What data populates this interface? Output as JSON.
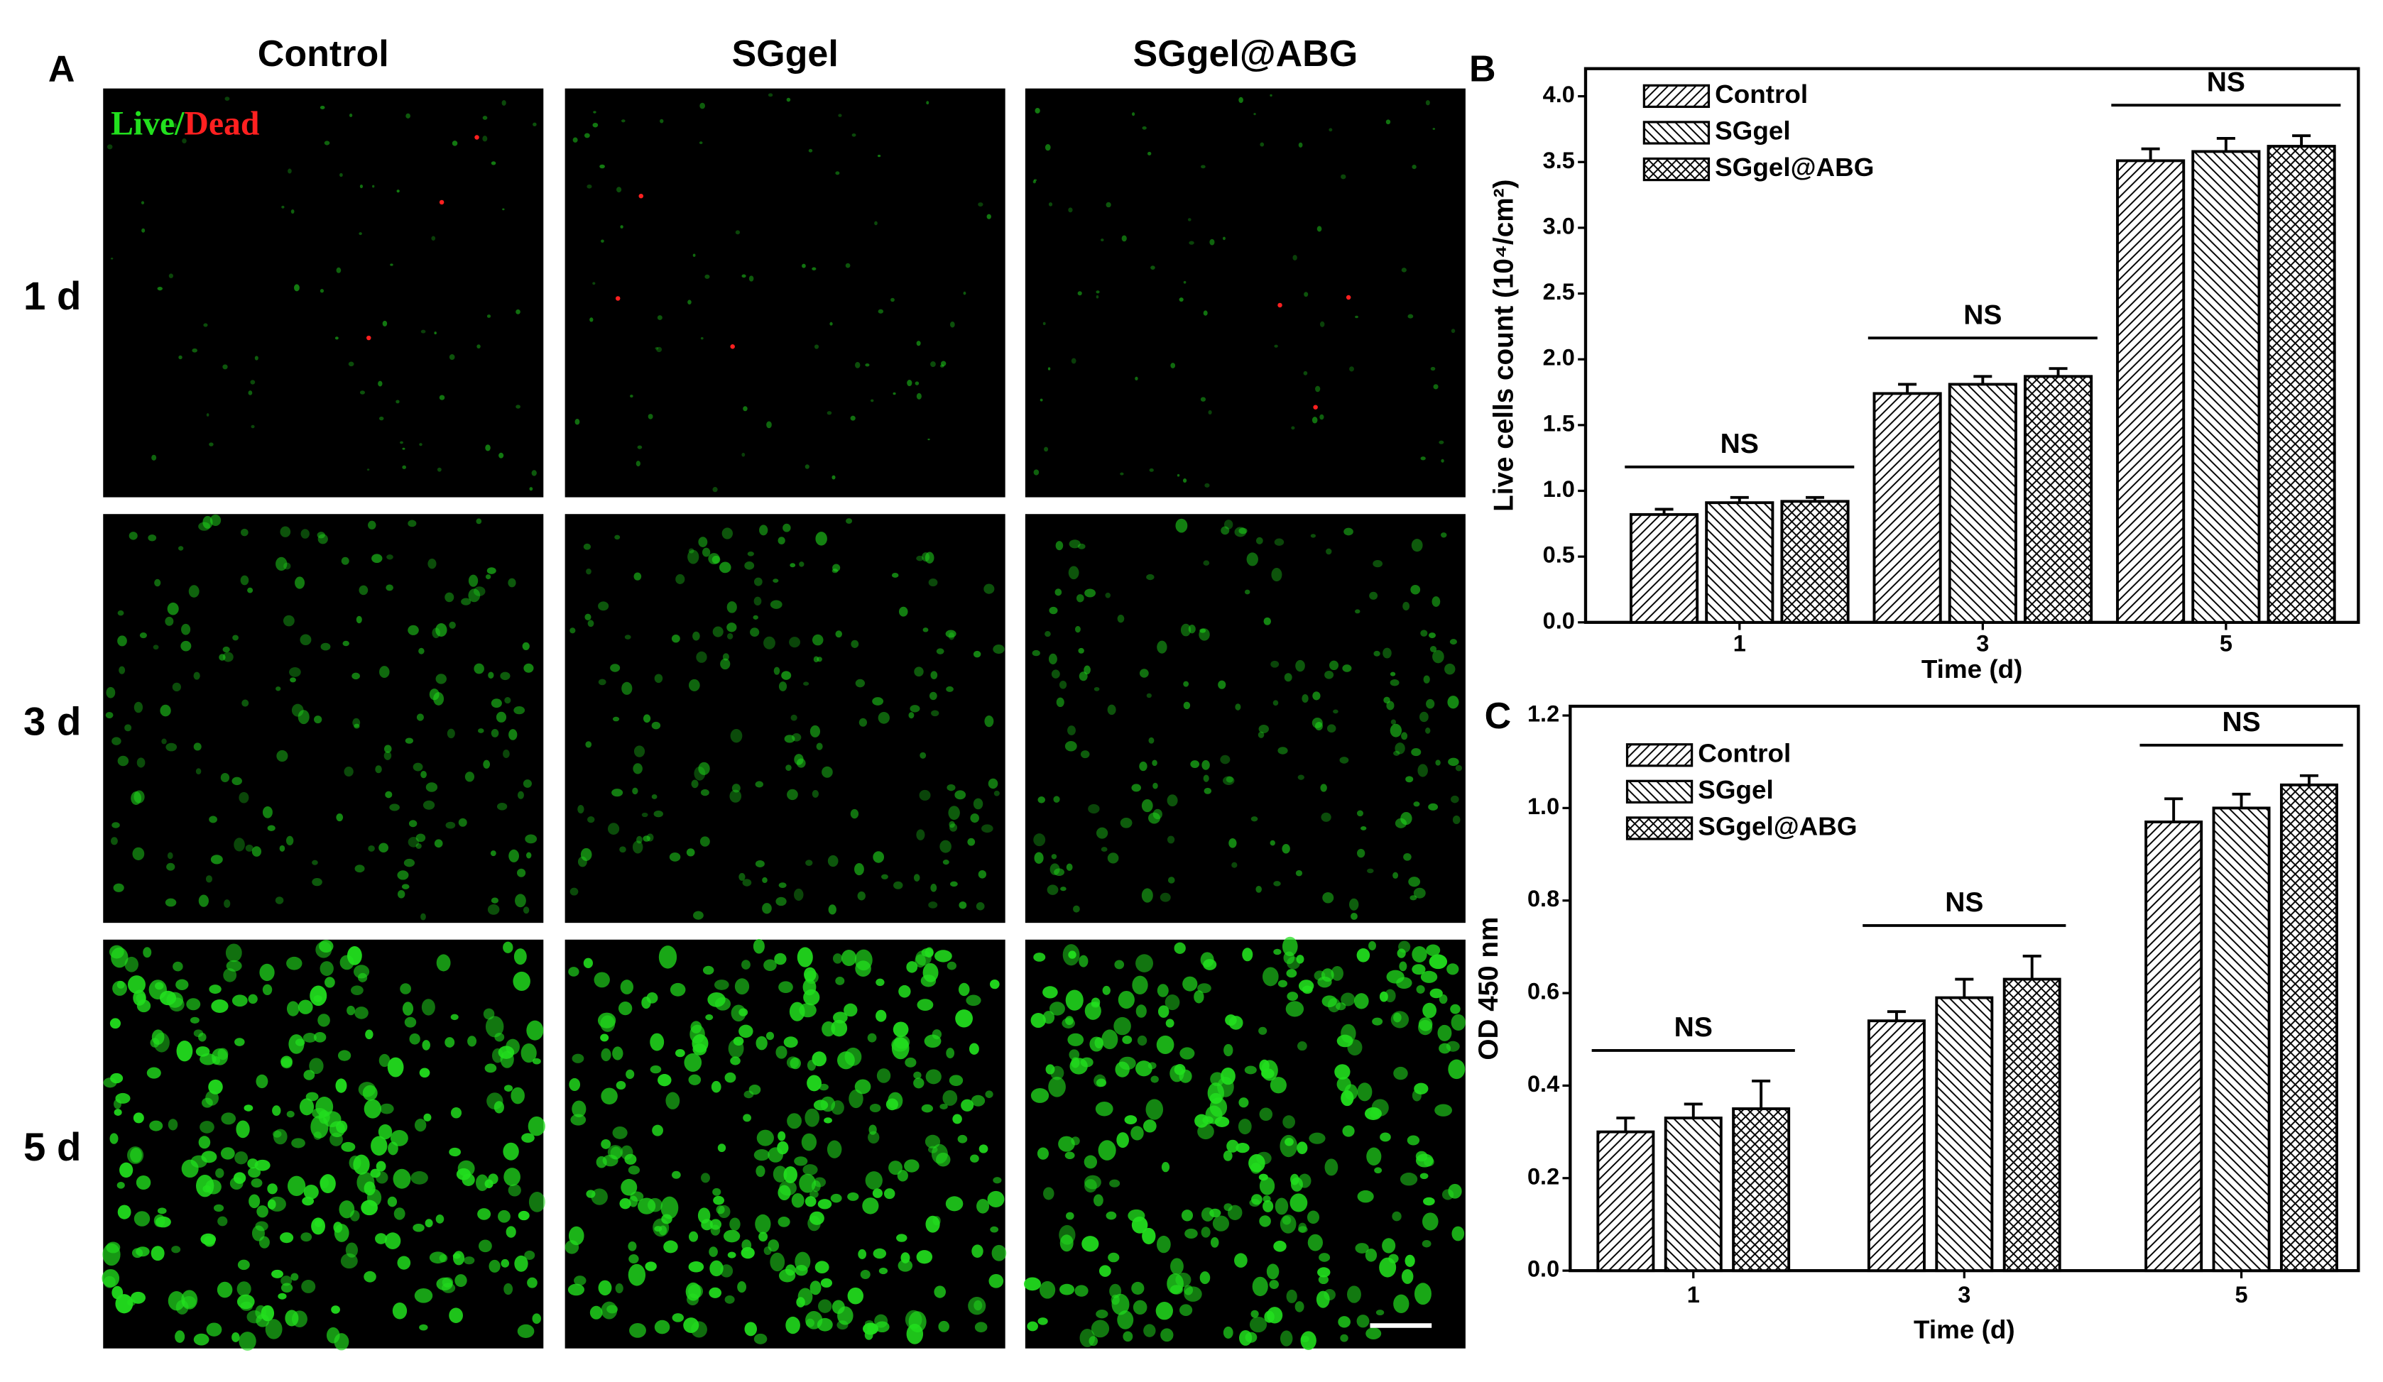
{
  "figure_a": {
    "panel": "A",
    "columns": [
      "Control",
      "SGgel",
      "SGgel@ABG"
    ],
    "rows": [
      "1 d",
      "3 d",
      "5 d"
    ],
    "stain": {
      "live": "Live",
      "separator": "/",
      "dead": "Dead",
      "live_color": "#22e01e",
      "dead_color": "#ff2020"
    }
  },
  "chart_data": [
    {
      "type": "bar",
      "panel": "B",
      "ylabel": "Live cells count (10⁴/cm²)",
      "xlabel": "Time (d)",
      "categories": [
        "1",
        "3",
        "5"
      ],
      "series": [
        {
          "name": "Control",
          "color": "#000000",
          "pattern": "diagonal-up",
          "values": [
            0.82,
            1.74,
            3.51
          ],
          "errors": [
            0.04,
            0.07,
            0.09
          ]
        },
        {
          "name": "SGgel",
          "color": "#000000",
          "pattern": "diagonal-down",
          "values": [
            0.91,
            1.81,
            3.58
          ],
          "errors": [
            0.04,
            0.06,
            0.1
          ]
        },
        {
          "name": "SGgel@ABG",
          "color": "#000000",
          "pattern": "crosshatch",
          "values": [
            0.92,
            1.87,
            3.62
          ],
          "errors": [
            0.03,
            0.06,
            0.08
          ]
        }
      ],
      "annotations": [
        "NS",
        "NS",
        "NS"
      ],
      "ylim": [
        0,
        4.21
      ],
      "yticks": [
        {
          "value": 0,
          "label": "0.0"
        },
        0.5,
        {
          "value": 1,
          "label": "1.0"
        },
        1.5,
        {
          "value": 2,
          "label": "2.0"
        },
        2.5,
        {
          "value": 3,
          "label": "3.0"
        },
        3.5,
        {
          "value": 4,
          "label": "4.0"
        }
      ],
      "legend": "upper left",
      "grid": false
    },
    {
      "type": "bar",
      "panel": "C",
      "ylabel": "OD 450 nm",
      "xlabel": "Time (d)",
      "categories": [
        "1",
        "3",
        "5"
      ],
      "series": [
        {
          "name": "Control",
          "color": "#000000",
          "pattern": "diagonal-up",
          "values": [
            0.3,
            0.54,
            0.97
          ],
          "errors": [
            0.03,
            0.02,
            0.05
          ]
        },
        {
          "name": "SGgel",
          "color": "#000000",
          "pattern": "diagonal-down",
          "values": [
            0.33,
            0.59,
            1.0
          ],
          "errors": [
            0.03,
            0.04,
            0.03
          ]
        },
        {
          "name": "SGgel@ABG",
          "color": "#000000",
          "pattern": "crosshatch",
          "values": [
            0.35,
            0.63,
            1.05
          ],
          "errors": [
            0.06,
            0.05,
            0.02
          ]
        }
      ],
      "annotations": [
        "NS",
        "NS",
        "NS"
      ],
      "ylim": [
        0,
        1.22
      ],
      "yticks": [
        {
          "value": 0,
          "label": "0.0"
        },
        0.2,
        0.4,
        0.6,
        0.8,
        {
          "value": 1,
          "label": "1.0"
        },
        1.2
      ],
      "legend": "upper left",
      "grid": false
    }
  ]
}
